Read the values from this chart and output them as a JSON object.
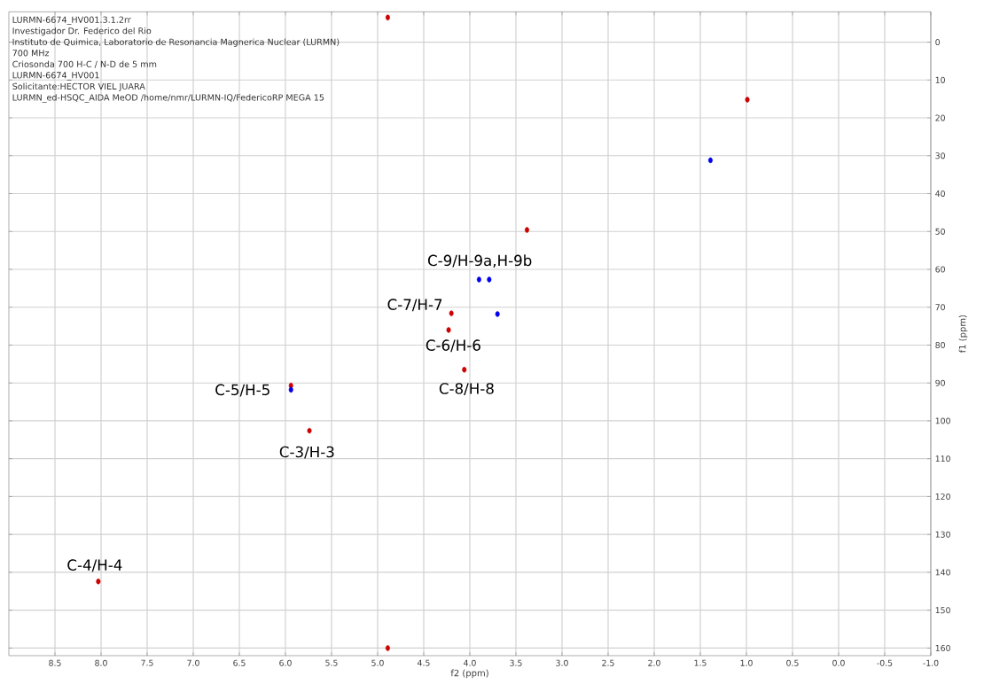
{
  "chart_data": {
    "type": "scatter",
    "xlabel": "f2 (ppm)",
    "ylabel": "f1 (ppm)",
    "xlim": [
      9.0,
      -1.0
    ],
    "ylim": [
      162,
      -8
    ],
    "xticks": [
      {
        "value": 8.5,
        "label": "8.5"
      },
      {
        "value": 8,
        "label": "8.0"
      },
      {
        "value": 7.5,
        "label": "7.5"
      },
      {
        "value": 7,
        "label": "7.0"
      },
      {
        "value": 6.5,
        "label": "6.5"
      },
      {
        "value": 6,
        "label": "6.0"
      },
      {
        "value": 5.5,
        "label": "5.5"
      },
      {
        "value": 5,
        "label": "5.0"
      },
      {
        "value": 4.5,
        "label": "4.5"
      },
      {
        "value": 4,
        "label": "4.0"
      },
      {
        "value": 3.5,
        "label": "3.5"
      },
      {
        "value": 3,
        "label": "3.0"
      },
      {
        "value": 2.5,
        "label": "2.5"
      },
      {
        "value": 2,
        "label": "2.0"
      },
      {
        "value": 1.5,
        "label": "1.5"
      },
      {
        "value": 1,
        "label": "1.0"
      },
      {
        "value": 0.5,
        "label": "0.5"
      },
      {
        "value": 0,
        "label": "0.0"
      },
      {
        "value": -0.5,
        "label": "-0.5"
      },
      {
        "value": -1,
        "label": "-1.0"
      }
    ],
    "yticks": [
      0,
      10,
      20,
      30,
      40,
      50,
      60,
      70,
      80,
      90,
      100,
      110,
      120,
      130,
      140,
      150,
      160
    ],
    "grid": true,
    "series": [
      {
        "color": "#cc0000",
        "x": [
          4.89,
          4.89,
          0.99,
          3.38,
          4.2,
          4.23,
          4.06,
          5.94,
          5.74,
          8.03
        ],
        "values": [
          -6.5,
          160,
          15.2,
          49.6,
          71.6,
          76.0,
          86.5,
          90.7,
          102.6,
          142.4
        ]
      },
      {
        "color": "#0000ee",
        "x": [
          1.39,
          3.9,
          3.79,
          3.7,
          5.94
        ],
        "values": [
          31.2,
          62.7,
          62.7,
          71.8,
          91.8
        ]
      }
    ],
    "annotations": [
      "LURMN-6674_HV001.3.1.2rr",
      "Investigador Dr. Federico del Rio",
      "Instituto de Quimica, Laboratorio de Resonancia Magnerica Nuclear (LURMN)",
      "700 MHz",
      "Criosonda 700 H-C / N-D de 5 mm",
      "LURMN-6674_HV001",
      "Solicitante:HECTOR VIEL JUARA",
      "LURMN_ed-HSQC_AIDA MeOD /home/nmr/LURMN-IQ/FedericoRP MEGA 15",
      {
        "text": "C-9/H-9a,H-9b",
        "x": 3.79,
        "y": 62.7
      },
      {
        "text": "C-7/H-7",
        "x": 4.2,
        "y": 71.6
      },
      {
        "text": "C-6/H-6",
        "x": 4.23,
        "y": 76.0
      },
      {
        "text": "C-8/H-8",
        "x": 4.06,
        "y": 86.5
      },
      {
        "text": "C-5/H-5",
        "x": 5.94,
        "y": 90.7
      },
      {
        "text": "C-3/H-3",
        "x": 5.74,
        "y": 102.6
      },
      {
        "text": "C-4/H-4",
        "x": 8.03,
        "y": 142.4
      }
    ]
  }
}
